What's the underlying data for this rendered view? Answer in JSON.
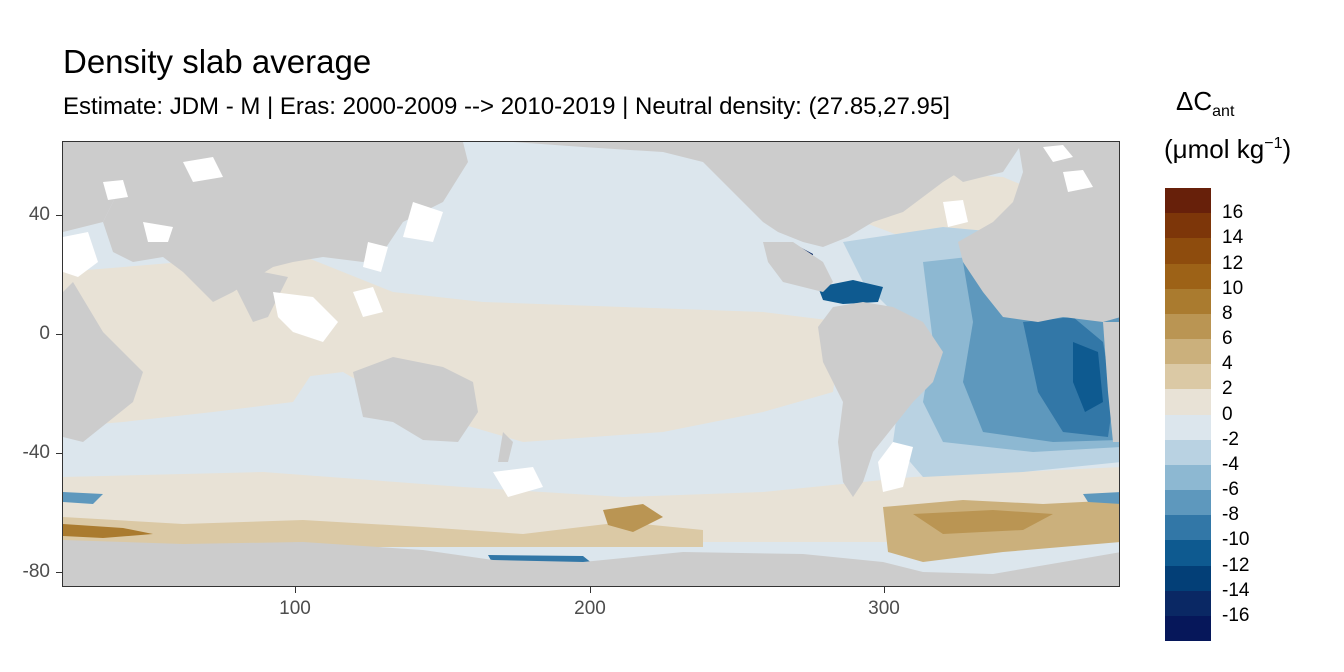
{
  "title": "Density slab average",
  "subtitle": "Estimate: JDM - M | Eras: 2000-2009 --> 2010-2019 | Neutral density: (27.85,27.95]",
  "legend": {
    "symbol": "ΔC",
    "symbol_sub": "ant",
    "unit_text": "(μmol kg",
    "unit_sup": "−1",
    "unit_close": ")",
    "labels": [
      "16",
      "14",
      "12",
      "10",
      "8",
      "6",
      "4",
      "2",
      "0",
      "-2",
      "-4",
      "-6",
      "-8",
      "-10",
      "-12",
      "-14",
      "-16"
    ],
    "colors": [
      "#67200a",
      "#7d3609",
      "#8e4c0d",
      "#9d6217",
      "#aa7b2f",
      "#ba9553",
      "#cbb07c",
      "#dbc9a5",
      "#e8e2d6",
      "#dce6ed",
      "#b9d2e2",
      "#8db8d2",
      "#5e98bd",
      "#3277a7",
      "#0e5a90",
      "#033f77",
      "#0a2864",
      "#06175a"
    ]
  },
  "axes": {
    "y_ticks": [
      "40",
      "0",
      "-40",
      "-80"
    ],
    "x_ticks": [
      "100",
      "200",
      "300"
    ]
  },
  "colors": {
    "land": "#cccccc",
    "no_data": "#ffffff",
    "panel_border": "#333333"
  }
}
